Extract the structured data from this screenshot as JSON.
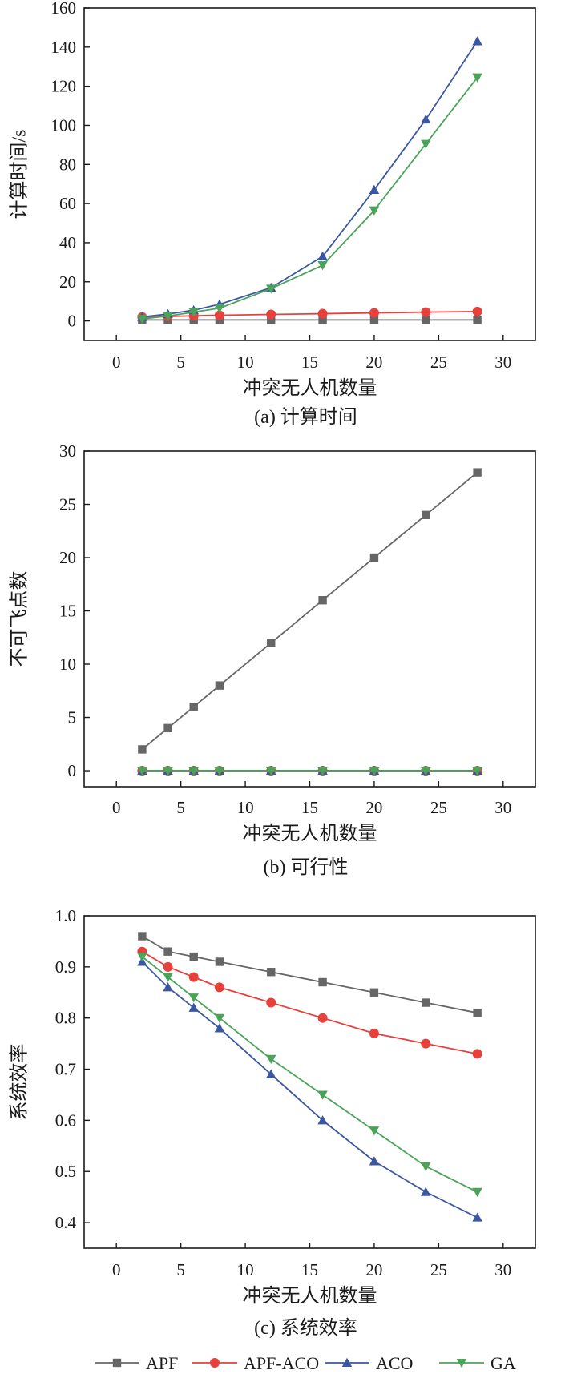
{
  "legend": [
    "APF",
    "APF-ACO",
    "ACO",
    "GA"
  ],
  "chart_data": [
    {
      "type": "line",
      "caption": "(a) 计算时间",
      "xlabel": "冲突无人机数量",
      "ylabel": "计算时间/s",
      "xlim": [
        -2.5,
        32.5
      ],
      "ylim": [
        -10,
        160
      ],
      "xticks": [
        0,
        5,
        10,
        15,
        20,
        25,
        30
      ],
      "yticks": [
        0,
        20,
        40,
        60,
        80,
        100,
        120,
        140,
        160
      ],
      "grid": false,
      "x": [
        2,
        4,
        6,
        8,
        12,
        16,
        20,
        24,
        28
      ],
      "series": [
        {
          "name": "APF",
          "color": "#666666",
          "marker": "square",
          "values": [
            0.5,
            0.5,
            0.5,
            0.5,
            0.5,
            0.5,
            0.5,
            0.5,
            0.5
          ]
        },
        {
          "name": "APF-ACO",
          "color": "#e8413c",
          "marker": "circle",
          "values": [
            2,
            2.3,
            2.6,
            2.9,
            3.3,
            3.7,
            4.1,
            4.5,
            4.8
          ]
        },
        {
          "name": "ACO",
          "color": "#3a57a4",
          "marker": "triangle-up",
          "values": [
            2,
            3.5,
            5.5,
            8.5,
            17,
            33,
            67,
            103,
            143
          ]
        },
        {
          "name": "GA",
          "color": "#4aa458",
          "marker": "triangle-down",
          "values": [
            1,
            2.5,
            4.5,
            6.5,
            16.5,
            28.5,
            56.5,
            90.5,
            124.5
          ]
        }
      ]
    },
    {
      "type": "line",
      "caption": "(b) 可行性",
      "xlabel": "冲突无人机数量",
      "ylabel": "不可飞点数",
      "xlim": [
        -2.5,
        32.5
      ],
      "ylim": [
        -1.5,
        30
      ],
      "xticks": [
        0,
        5,
        10,
        15,
        20,
        25,
        30
      ],
      "yticks": [
        0,
        5,
        10,
        15,
        20,
        25,
        30
      ],
      "grid": false,
      "x": [
        2,
        4,
        6,
        8,
        12,
        16,
        20,
        24,
        28
      ],
      "series": [
        {
          "name": "APF",
          "color": "#666666",
          "marker": "square",
          "values": [
            2,
            4,
            6,
            8,
            12,
            16,
            20,
            24,
            28
          ]
        },
        {
          "name": "APF-ACO",
          "color": "#e8413c",
          "marker": "circle",
          "values": [
            0,
            0,
            0,
            0,
            0,
            0,
            0,
            0,
            0
          ]
        },
        {
          "name": "ACO",
          "color": "#3a57a4",
          "marker": "triangle-up",
          "values": [
            0,
            0,
            0,
            0,
            0,
            0,
            0,
            0,
            0
          ]
        },
        {
          "name": "GA",
          "color": "#4aa458",
          "marker": "triangle-down",
          "values": [
            0,
            0,
            0,
            0,
            0,
            0,
            0,
            0,
            0
          ]
        }
      ]
    },
    {
      "type": "line",
      "caption": "(c) 系统效率",
      "xlabel": "冲突无人机数量",
      "ylabel": "系统效率",
      "xlim": [
        -2.5,
        32.5
      ],
      "ylim": [
        0.35,
        1.0
      ],
      "xticks": [
        0,
        5,
        10,
        15,
        20,
        25,
        30
      ],
      "yticks": [
        0.4,
        0.5,
        0.6,
        0.7,
        0.8,
        0.9,
        1.0
      ],
      "ytick_decimals": 1,
      "grid": false,
      "x": [
        2,
        4,
        6,
        8,
        12,
        16,
        20,
        24,
        28
      ],
      "series": [
        {
          "name": "APF",
          "color": "#666666",
          "marker": "square",
          "values": [
            0.96,
            0.93,
            0.92,
            0.91,
            0.89,
            0.87,
            0.85,
            0.83,
            0.81
          ]
        },
        {
          "name": "APF-ACO",
          "color": "#e8413c",
          "marker": "circle",
          "values": [
            0.93,
            0.9,
            0.88,
            0.86,
            0.83,
            0.8,
            0.77,
            0.75,
            0.73
          ]
        },
        {
          "name": "ACO",
          "color": "#3a57a4",
          "marker": "triangle-up",
          "values": [
            0.91,
            0.86,
            0.82,
            0.78,
            0.69,
            0.6,
            0.52,
            0.46,
            0.41
          ]
        },
        {
          "name": "GA",
          "color": "#4aa458",
          "marker": "triangle-down",
          "values": [
            0.92,
            0.88,
            0.84,
            0.8,
            0.72,
            0.65,
            0.58,
            0.51,
            0.46
          ]
        }
      ]
    }
  ]
}
